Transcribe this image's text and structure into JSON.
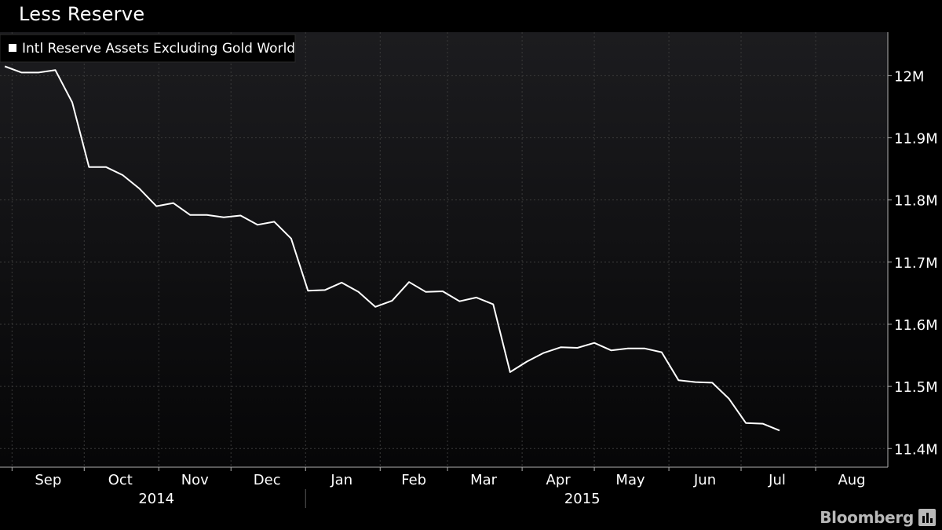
{
  "header": {
    "title": "Less Reserve"
  },
  "footer": {
    "brand": "Bloomberg"
  },
  "colors": {
    "background": "#000000",
    "plot_top": "#1c1c1f",
    "plot_bottom": "#060607",
    "line": "#ffffff",
    "grid": "#3a3a3a",
    "text": "#ffffff"
  },
  "chart_data": {
    "type": "line",
    "title": "Less Reserve",
    "legend": {
      "position": "top-left",
      "entries": [
        "Intl Reserve Assets Excluding Gold World"
      ]
    },
    "grid": true,
    "y_axis": {
      "side": "right",
      "ylim": [
        11.37,
        12.07
      ],
      "ticks": [
        11.4,
        11.5,
        11.6,
        11.7,
        11.8,
        11.9,
        12.0
      ],
      "tick_labels": [
        "11.4M",
        "11.5M",
        "11.6M",
        "11.7M",
        "11.8M",
        "11.9M",
        "12M"
      ]
    },
    "x_axis": {
      "xlim": [
        "2014-08-27",
        "2015-08-31"
      ],
      "month_labels": [
        {
          "label": "Sep",
          "date": "2014-09-16"
        },
        {
          "label": "Oct",
          "date": "2014-10-16"
        },
        {
          "label": "Nov",
          "date": "2014-11-16"
        },
        {
          "label": "Dec",
          "date": "2014-12-16"
        },
        {
          "label": "Jan",
          "date": "2015-01-16"
        },
        {
          "label": "Feb",
          "date": "2015-02-15"
        },
        {
          "label": "Mar",
          "date": "2015-03-16"
        },
        {
          "label": "Apr",
          "date": "2015-04-16"
        },
        {
          "label": "May",
          "date": "2015-05-16"
        },
        {
          "label": "Jun",
          "date": "2015-06-16"
        },
        {
          "label": "Jul",
          "date": "2015-07-16"
        },
        {
          "label": "Aug",
          "date": "2015-08-16"
        }
      ],
      "year_labels": [
        {
          "label": "2014",
          "date": "2014-10-31"
        },
        {
          "label": "2015",
          "date": "2015-04-26"
        }
      ],
      "year_separator": "2015-01-01"
    },
    "series": [
      {
        "name": "Intl Reserve Assets Excluding Gold World",
        "color": "#ffffff",
        "points": [
          [
            "2014-08-29",
            12.015
          ],
          [
            "2014-09-05",
            12.005
          ],
          [
            "2014-09-12",
            12.005
          ],
          [
            "2014-09-19",
            12.009
          ],
          [
            "2014-09-26",
            11.957
          ],
          [
            "2014-10-03",
            11.853
          ],
          [
            "2014-10-10",
            11.853
          ],
          [
            "2014-10-17",
            11.84
          ],
          [
            "2014-10-24",
            11.818
          ],
          [
            "2014-10-31",
            11.79
          ],
          [
            "2014-11-07",
            11.795
          ],
          [
            "2014-11-14",
            11.776
          ],
          [
            "2014-11-21",
            11.776
          ],
          [
            "2014-11-28",
            11.772
          ],
          [
            "2014-12-05",
            11.775
          ],
          [
            "2014-12-12",
            11.76
          ],
          [
            "2014-12-19",
            11.765
          ],
          [
            "2014-12-26",
            11.738
          ],
          [
            "2015-01-02",
            11.654
          ],
          [
            "2015-01-09",
            11.655
          ],
          [
            "2015-01-16",
            11.667
          ],
          [
            "2015-01-23",
            11.652
          ],
          [
            "2015-01-30",
            11.628
          ],
          [
            "2015-02-06",
            11.638
          ],
          [
            "2015-02-13",
            11.668
          ],
          [
            "2015-02-20",
            11.652
          ],
          [
            "2015-02-27",
            11.653
          ],
          [
            "2015-03-06",
            11.637
          ],
          [
            "2015-03-13",
            11.643
          ],
          [
            "2015-03-20",
            11.632
          ],
          [
            "2015-03-27",
            11.523
          ],
          [
            "2015-04-03",
            11.54
          ],
          [
            "2015-04-10",
            11.554
          ],
          [
            "2015-04-17",
            11.563
          ],
          [
            "2015-04-24",
            11.562
          ],
          [
            "2015-05-01",
            11.57
          ],
          [
            "2015-05-08",
            11.558
          ],
          [
            "2015-05-15",
            11.561
          ],
          [
            "2015-05-22",
            11.561
          ],
          [
            "2015-05-29",
            11.555
          ],
          [
            "2015-06-05",
            11.51
          ],
          [
            "2015-06-12",
            11.507
          ],
          [
            "2015-06-19",
            11.506
          ],
          [
            "2015-06-26",
            11.48
          ],
          [
            "2015-07-03",
            11.441
          ],
          [
            "2015-07-10",
            11.44
          ],
          [
            "2015-07-17",
            11.429
          ]
        ]
      }
    ]
  }
}
